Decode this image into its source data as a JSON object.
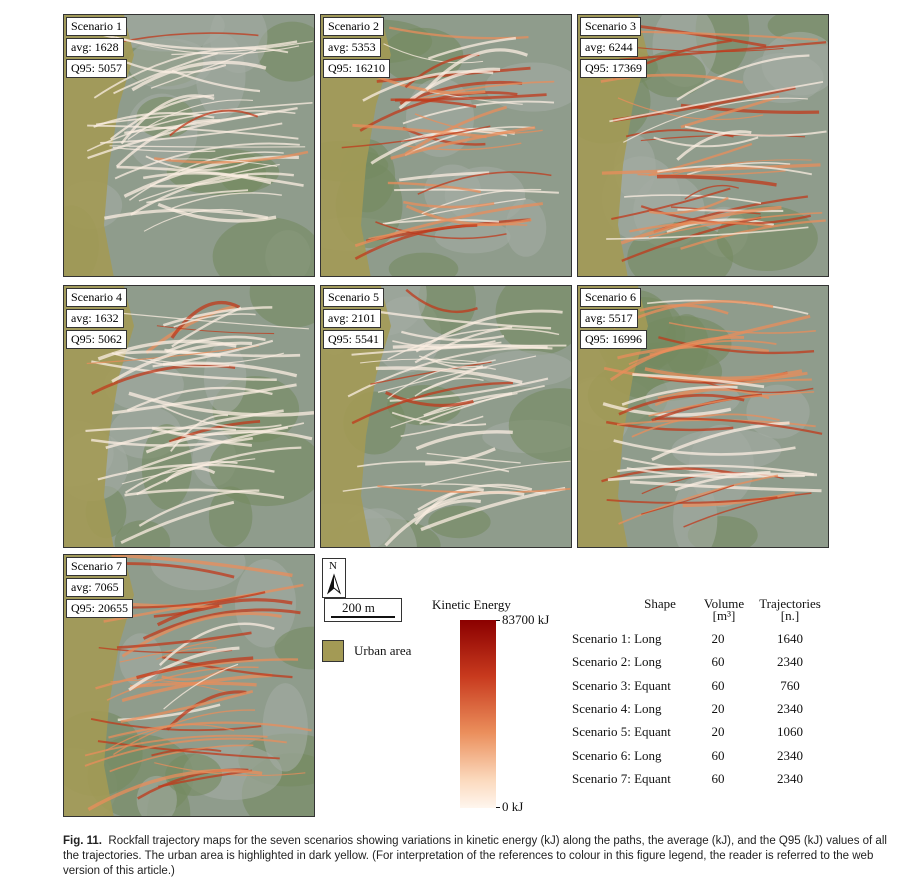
{
  "panels": [
    {
      "title": "Scenario 1",
      "avg": "avg: 1628",
      "q95": "Q95: 5057"
    },
    {
      "title": "Scenario 2",
      "avg": "avg: 5353",
      "q95": "Q95: 16210"
    },
    {
      "title": "Scenario 3",
      "avg": "avg: 6244",
      "q95": "Q95: 17369"
    },
    {
      "title": "Scenario 4",
      "avg": "avg: 1632",
      "q95": "Q95: 5062"
    },
    {
      "title": "Scenario 5",
      "avg": "avg: 2101",
      "q95": "Q95: 5541"
    },
    {
      "title": "Scenario 6",
      "avg": "avg: 5517",
      "q95": "Q95: 16996"
    },
    {
      "title": "Scenario 7",
      "avg": "avg: 7065",
      "q95": "Q95: 20655"
    }
  ],
  "legend": {
    "north": "N",
    "scale": "200 m",
    "urban": "Urban area"
  },
  "colorbar": {
    "title": "Kinetic Energy",
    "max": "83700 kJ",
    "min": "0 kJ"
  },
  "table": {
    "headers": [
      "Shape",
      "Volume",
      "Trajectories"
    ],
    "units": [
      "[m³]",
      "[n.]"
    ],
    "rows": [
      [
        "Scenario 1: Long",
        20,
        1640
      ],
      [
        "Scenario 2: Long",
        60,
        2340
      ],
      [
        "Scenario 3: Equant",
        60,
        760
      ],
      [
        "Scenario 4: Long",
        20,
        2340
      ],
      [
        "Scenario 5: Equant",
        20,
        1060
      ],
      [
        "Scenario 6: Long",
        60,
        2340
      ],
      [
        "Scenario 7: Equant",
        60,
        2340
      ]
    ]
  },
  "caption": {
    "label": "Fig. 11.",
    "text": "Rockfall trajectory maps for the seven scenarios showing variations in kinetic energy (kJ) along the paths, the average (kJ), and the Q95 (kJ) values of all the trajectories. The urban area is highlighted in dark yellow. (For interpretation of the references to colour in this figure legend, the reader is referred to the web version of this article.)"
  }
}
